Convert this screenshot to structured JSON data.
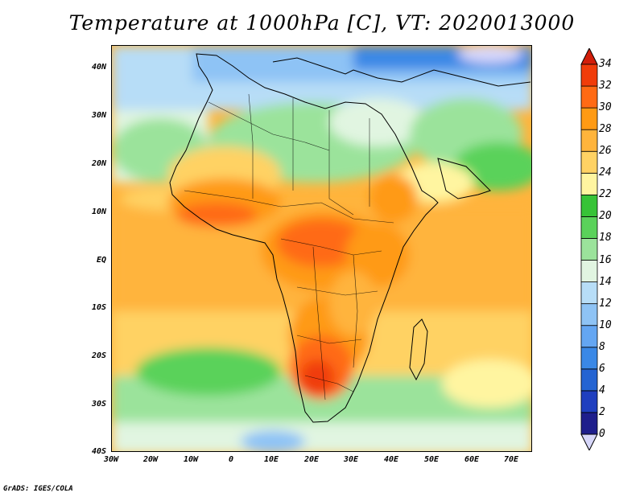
{
  "title": "Temperature at 1000hPa [C], VT: 2020013000",
  "credit": "GrADS: IGES/COLA",
  "map": {
    "lon_range": [
      -30,
      75
    ],
    "lat_range": [
      -40,
      45
    ],
    "lat_ticks": [
      {
        "value": 40,
        "label": "40N"
      },
      {
        "value": 30,
        "label": "30N"
      },
      {
        "value": 20,
        "label": "20N"
      },
      {
        "value": 10,
        "label": "10N"
      },
      {
        "value": 0,
        "label": "EQ"
      },
      {
        "value": -10,
        "label": "10S"
      },
      {
        "value": -20,
        "label": "20S"
      },
      {
        "value": -30,
        "label": "30S"
      },
      {
        "value": -40,
        "label": "40S"
      }
    ],
    "lon_ticks": [
      {
        "value": -30,
        "label": "30W"
      },
      {
        "value": -20,
        "label": "20W"
      },
      {
        "value": -10,
        "label": "10W"
      },
      {
        "value": 0,
        "label": "0"
      },
      {
        "value": 10,
        "label": "10E"
      },
      {
        "value": 20,
        "label": "20E"
      },
      {
        "value": 30,
        "label": "30E"
      },
      {
        "value": 40,
        "label": "40E"
      },
      {
        "value": 50,
        "label": "50E"
      },
      {
        "value": 60,
        "label": "60E"
      },
      {
        "value": 70,
        "label": "70E"
      }
    ]
  },
  "colorbar": {
    "levels": [
      "0",
      "2",
      "4",
      "6",
      "8",
      "10",
      "12",
      "14",
      "16",
      "18",
      "20",
      "22",
      "24",
      "26",
      "28",
      "30",
      "32",
      "34"
    ],
    "colors": [
      "#d7d7fa",
      "#1e1e8c",
      "#1f3fbf",
      "#2464d2",
      "#3a88e6",
      "#64a6f2",
      "#8ec3f5",
      "#b7ddf7",
      "#e1f5e1",
      "#9be39b",
      "#5ad25a",
      "#37c337",
      "#fff5a0",
      "#ffd264",
      "#ffb43c",
      "#ff9a14",
      "#ff6a14",
      "#f03c0a",
      "#d21e0a"
    ]
  }
}
